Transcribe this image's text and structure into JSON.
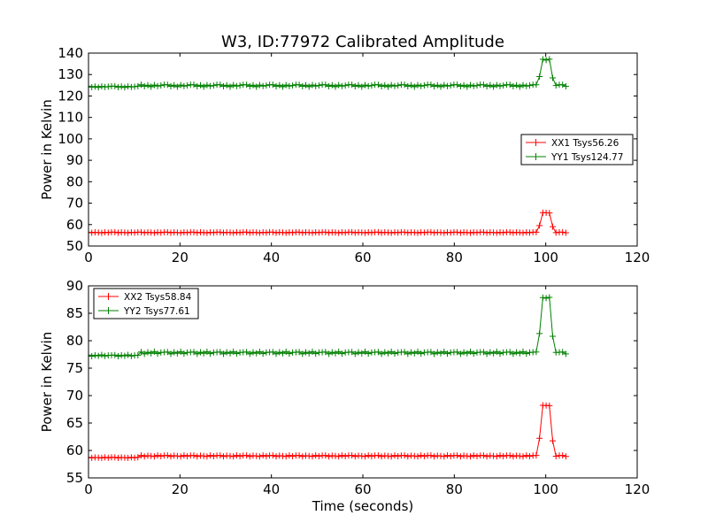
{
  "title": "W3, ID:77972 Calibrated Amplitude",
  "chart_data": [
    {
      "type": "line",
      "title": "W3, ID:77972 Calibrated Amplitude",
      "xlabel": "",
      "ylabel": "Power in Kelvin",
      "xlim": [
        0,
        120
      ],
      "ylim": [
        50,
        140
      ],
      "xticks": [
        "0",
        "20",
        "40",
        "60",
        "80",
        "100",
        "120"
      ],
      "yticks": [
        "50",
        "60",
        "70",
        "80",
        "90",
        "100",
        "110",
        "120",
        "130",
        "140"
      ],
      "legend_position": "center-right",
      "grid": false,
      "marker": "plus",
      "series": [
        {
          "name": "XX1 Tsys56.26",
          "color": "#ff0000",
          "base": 56.3,
          "noise": [
            0.15,
            -0.1,
            0.1,
            0.0,
            -0.15,
            0.1,
            -0.05,
            0.15
          ],
          "steps": [],
          "peak": 65.5
        },
        {
          "name": "YY1 Tsys124.77",
          "color": "#008000",
          "base": 124.8,
          "noise": [
            0.4,
            -0.3,
            0.2,
            -0.5,
            0.3,
            -0.2,
            0.1,
            0.4
          ],
          "steps": [
            {
              "x_start": 0,
              "x_end": 11,
              "value": 124.3
            }
          ],
          "peak": 137.0
        }
      ]
    },
    {
      "type": "line",
      "title": "",
      "xlabel": "Time (seconds)",
      "ylabel": "Power in Kelvin",
      "xlim": [
        0,
        120
      ],
      "ylim": [
        55,
        90
      ],
      "xticks": [
        "0",
        "20",
        "40",
        "60",
        "80",
        "100",
        "120"
      ],
      "yticks": [
        "55",
        "60",
        "65",
        "70",
        "75",
        "80",
        "85",
        "90"
      ],
      "legend_position": "top-left",
      "grid": false,
      "marker": "plus",
      "series": [
        {
          "name": "XX2 Tsys58.84",
          "color": "#ff0000",
          "base": 59.0,
          "noise": [
            0.1,
            -0.1,
            0.05,
            0.0,
            -0.08,
            0.1,
            -0.05,
            0.08
          ],
          "steps": [
            {
              "x_start": 0,
              "x_end": 11,
              "value": 58.7
            }
          ],
          "peak": 68.2
        },
        {
          "name": "YY2 Tsys77.61",
          "color": "#008000",
          "base": 77.8,
          "noise": [
            0.15,
            -0.2,
            0.1,
            -0.1,
            0.2,
            -0.15,
            0.05,
            0.1
          ],
          "steps": [
            {
              "x_start": 0,
              "x_end": 11,
              "value": 77.3
            }
          ],
          "peak": 87.8
        }
      ]
    }
  ],
  "series_x": {
    "start": 0,
    "end": 104.4,
    "step": 0.72,
    "peak_start": 99.0,
    "peak_end": 101.2,
    "ramp_up_x": 98.3,
    "ramp_down_x": 101.9
  }
}
